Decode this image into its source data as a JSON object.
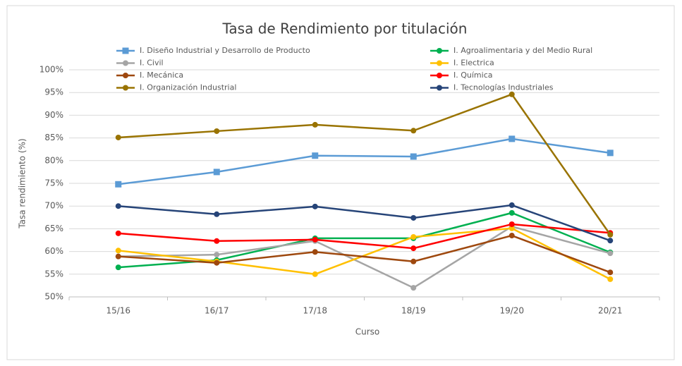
{
  "chart_data": {
    "type": "line",
    "title": "Tasa de Rendimiento por titulación",
    "x_label": "Curso",
    "y_label": "Tasa rendimiento (%)",
    "categories": [
      "15/16",
      "16/17",
      "17/18",
      "18/19",
      "19/20",
      "20/21"
    ],
    "series": [
      {
        "name": "I. Diseño Industrial y Desarrollo de Producto",
        "color": "#5b9bd5",
        "marker": "square",
        "values": [
          74.8,
          77.5,
          81.1,
          80.9,
          84.8,
          81.7
        ]
      },
      {
        "name": "I. Agroalimentaria y del Medio Rural",
        "color": "#00b050",
        "marker": "circle",
        "values": [
          56.5,
          58.1,
          62.9,
          62.9,
          68.5,
          59.8
        ]
      },
      {
        "name": "I. Civil",
        "color": "#a5a5a5",
        "marker": "circle",
        "values": [
          58.9,
          59.3,
          62.3,
          52.0,
          65.5,
          59.6
        ]
      },
      {
        "name": "I. Electrica",
        "color": "#ffc000",
        "marker": "circle",
        "values": [
          60.2,
          57.8,
          55.0,
          63.2,
          65.1,
          53.9
        ]
      },
      {
        "name": "I. Mecánica",
        "color": "#9e480e",
        "marker": "circle",
        "values": [
          58.9,
          57.5,
          59.9,
          57.8,
          63.5,
          55.4
        ]
      },
      {
        "name": "I. Química",
        "color": "#ff0000",
        "marker": "circle",
        "values": [
          64.0,
          62.3,
          62.6,
          60.7,
          66.0,
          64.1
        ]
      },
      {
        "name": "I. Organización Industrial",
        "color": "#997300",
        "marker": "circle",
        "values": [
          85.1,
          86.5,
          87.9,
          86.6,
          94.6,
          63.7
        ]
      },
      {
        "name": "I. Tecnologías Industriales",
        "color": "#264478",
        "marker": "circle",
        "values": [
          70.0,
          68.2,
          69.9,
          67.4,
          70.2,
          62.4
        ]
      }
    ],
    "ylim": [
      50,
      100
    ],
    "yticks": [
      {
        "value": 50,
        "label": "50%"
      },
      {
        "value": 55,
        "label": "55%"
      },
      {
        "value": 60,
        "label": "60%"
      },
      {
        "value": 65,
        "label": "65%"
      },
      {
        "value": 70,
        "label": "70%"
      },
      {
        "value": 75,
        "label": "75%"
      },
      {
        "value": 80,
        "label": "80%"
      },
      {
        "value": 85,
        "label": "85%"
      },
      {
        "value": 90,
        "label": "90%"
      },
      {
        "value": 95,
        "label": "95%"
      },
      {
        "value": 100,
        "label": "100%"
      }
    ],
    "grid": true,
    "legend": "top"
  }
}
